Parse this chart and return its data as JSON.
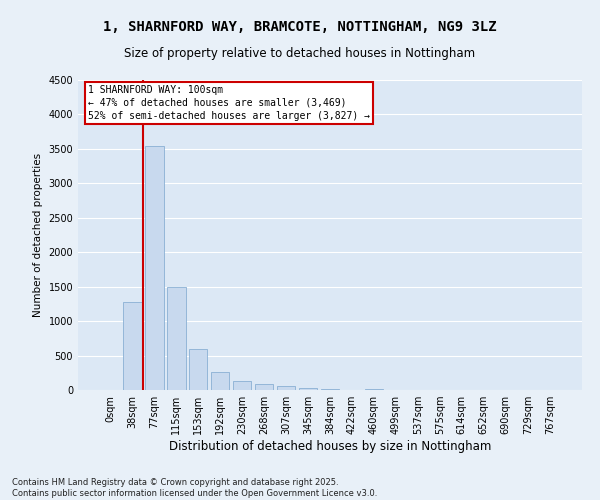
{
  "title": "1, SHARNFORD WAY, BRAMCOTE, NOTTINGHAM, NG9 3LZ",
  "subtitle": "Size of property relative to detached houses in Nottingham",
  "xlabel": "Distribution of detached houses by size in Nottingham",
  "ylabel": "Number of detached properties",
  "bar_color": "#c8d9ee",
  "bar_edge_color": "#8ab0d4",
  "background_color": "#dce8f5",
  "grid_color": "#ffffff",
  "vline_color": "#cc0000",
  "annotation_text": "1 SHARNFORD WAY: 100sqm\n← 47% of detached houses are smaller (3,469)\n52% of semi-detached houses are larger (3,827) →",
  "annotation_box_color": "#cc0000",
  "categories": [
    "0sqm",
    "38sqm",
    "77sqm",
    "115sqm",
    "153sqm",
    "192sqm",
    "230sqm",
    "268sqm",
    "307sqm",
    "345sqm",
    "384sqm",
    "422sqm",
    "460sqm",
    "499sqm",
    "537sqm",
    "575sqm",
    "614sqm",
    "652sqm",
    "690sqm",
    "729sqm",
    "767sqm"
  ],
  "values": [
    5,
    1280,
    3540,
    1500,
    590,
    260,
    130,
    80,
    55,
    25,
    10,
    5,
    20,
    5,
    0,
    0,
    0,
    0,
    0,
    0,
    0
  ],
  "ylim": [
    0,
    4500
  ],
  "yticks": [
    0,
    500,
    1000,
    1500,
    2000,
    2500,
    3000,
    3500,
    4000,
    4500
  ],
  "footnote": "Contains HM Land Registry data © Crown copyright and database right 2025.\nContains public sector information licensed under the Open Government Licence v3.0.",
  "figsize": [
    6.0,
    5.0
  ],
  "dpi": 100
}
